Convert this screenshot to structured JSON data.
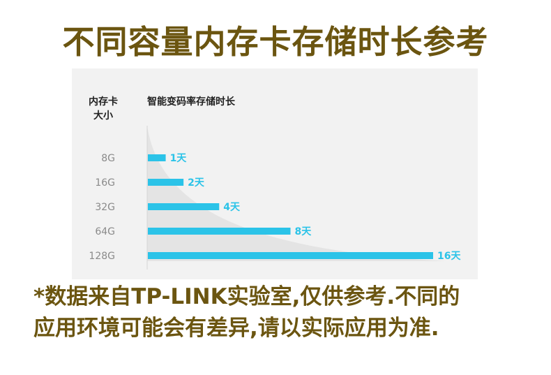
{
  "title": "不同容量内存卡存储时长参考",
  "header": {
    "left_line1": "内存卡",
    "left_line2": "大小",
    "right": "智能变码率存储时长"
  },
  "colors": {
    "title": "#6b5510",
    "bar": "#2bc3e8",
    "bar_label": "#2bc3e8",
    "card_bg": "#f2f2f2",
    "category_label": "#8a8a8a"
  },
  "chart_data": {
    "type": "bar",
    "orientation": "horizontal",
    "categories": [
      "8G",
      "16G",
      "32G",
      "64G",
      "128G"
    ],
    "values": [
      1,
      2,
      4,
      8,
      16
    ],
    "value_labels": [
      "1天",
      "2天",
      "4天",
      "8天",
      "16天"
    ],
    "xlim": [
      0,
      16
    ],
    "grid": false,
    "legend": "none"
  },
  "footnote": {
    "line1": "*数据来自TP-LINK实验室,仅供参考.不同的",
    "line2": "应用环境可能会有差异,请以实际应用为准."
  }
}
